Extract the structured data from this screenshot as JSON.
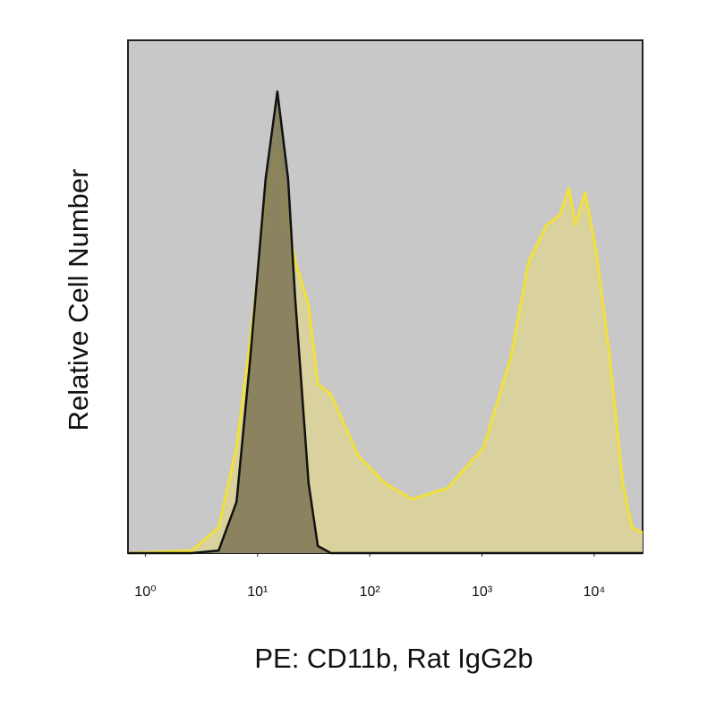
{
  "chart_data": {
    "type": "histogram-overlay",
    "xlabel": "PE: CD11b, Rat IgG2b",
    "ylabel": "Relative Cell Number",
    "log_x": true,
    "xlim": [
      0.7,
      27000
    ],
    "ylim": [
      0,
      100
    ],
    "xticks": [
      {
        "value": 1,
        "label": "10⁰"
      },
      {
        "value": 10,
        "label": "10¹"
      },
      {
        "value": 100,
        "label": "10²"
      },
      {
        "value": 1000,
        "label": "10³"
      },
      {
        "value": 10000,
        "label": "10⁴"
      }
    ],
    "background": "#c8c8c8",
    "x": [
      0.7,
      2.6,
      4.5,
      6.5,
      8.6,
      11.8,
      15,
      18.7,
      21.6,
      28.5,
      34.4,
      45,
      79,
      137,
      238,
      496,
      1030,
      1800,
      2620,
      3780,
      4970,
      5970,
      6790,
      8310,
      10400,
      13800,
      18000,
      21700,
      27000
    ],
    "series": [
      {
        "color": "#f2e03a",
        "fill": "#d9d29e",
        "values": [
          0,
          0.5,
          5,
          20.6,
          41.5,
          67.7,
          79,
          64,
          57,
          48.5,
          33,
          31,
          19,
          13.6,
          10.5,
          12.7,
          20.6,
          38,
          57,
          64,
          66,
          71.2,
          64,
          70.3,
          59,
          38,
          13.6,
          5,
          4
        ]
      },
      {
        "color": "#111111",
        "fill": "#7d7654",
        "values": [
          0,
          0,
          0.5,
          10,
          38,
          73,
          90,
          73,
          50,
          13.6,
          1.4,
          0,
          0,
          0,
          0,
          0,
          0,
          0,
          0,
          0,
          0,
          0,
          0,
          0,
          0,
          0,
          0,
          0,
          0
        ]
      }
    ]
  }
}
